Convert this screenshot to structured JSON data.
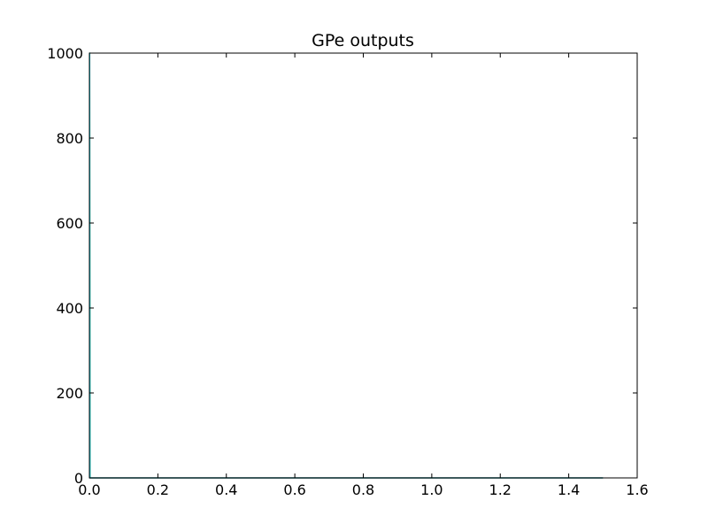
{
  "chart_data": {
    "type": "line",
    "title": "GPe outputs",
    "xlabel": "",
    "ylabel": "",
    "xlim": [
      0,
      1.6
    ],
    "ylim": [
      0,
      1000
    ],
    "xticks": [
      "0.0",
      "0.2",
      "0.4",
      "0.6",
      "0.8",
      "1.0",
      "1.2",
      "1.4",
      "1.6"
    ],
    "yticks": [
      "0",
      "200",
      "400",
      "600",
      "800",
      "1000"
    ],
    "xtick_values": [
      0,
      0.2,
      0.4,
      0.6,
      0.8,
      1.0,
      1.2,
      1.4,
      1.6
    ],
    "ytick_values": [
      0,
      200,
      400,
      600,
      800,
      1000
    ],
    "grid": false,
    "series": [
      {
        "color": "#2ca02c",
        "x": [
          0,
          0.001,
          0.002,
          0.004,
          1.5
        ],
        "y": [
          1000,
          1000,
          0,
          0,
          0
        ]
      },
      {
        "color": "#17becf",
        "x": [
          0,
          0.001,
          0.002,
          0.004,
          1.5
        ],
        "y": [
          1000,
          1000,
          0,
          0,
          0
        ]
      },
      {
        "color": "#1f3f7f",
        "x": [
          0,
          0.002,
          1.5
        ],
        "y": [
          0,
          0,
          0
        ]
      }
    ]
  }
}
